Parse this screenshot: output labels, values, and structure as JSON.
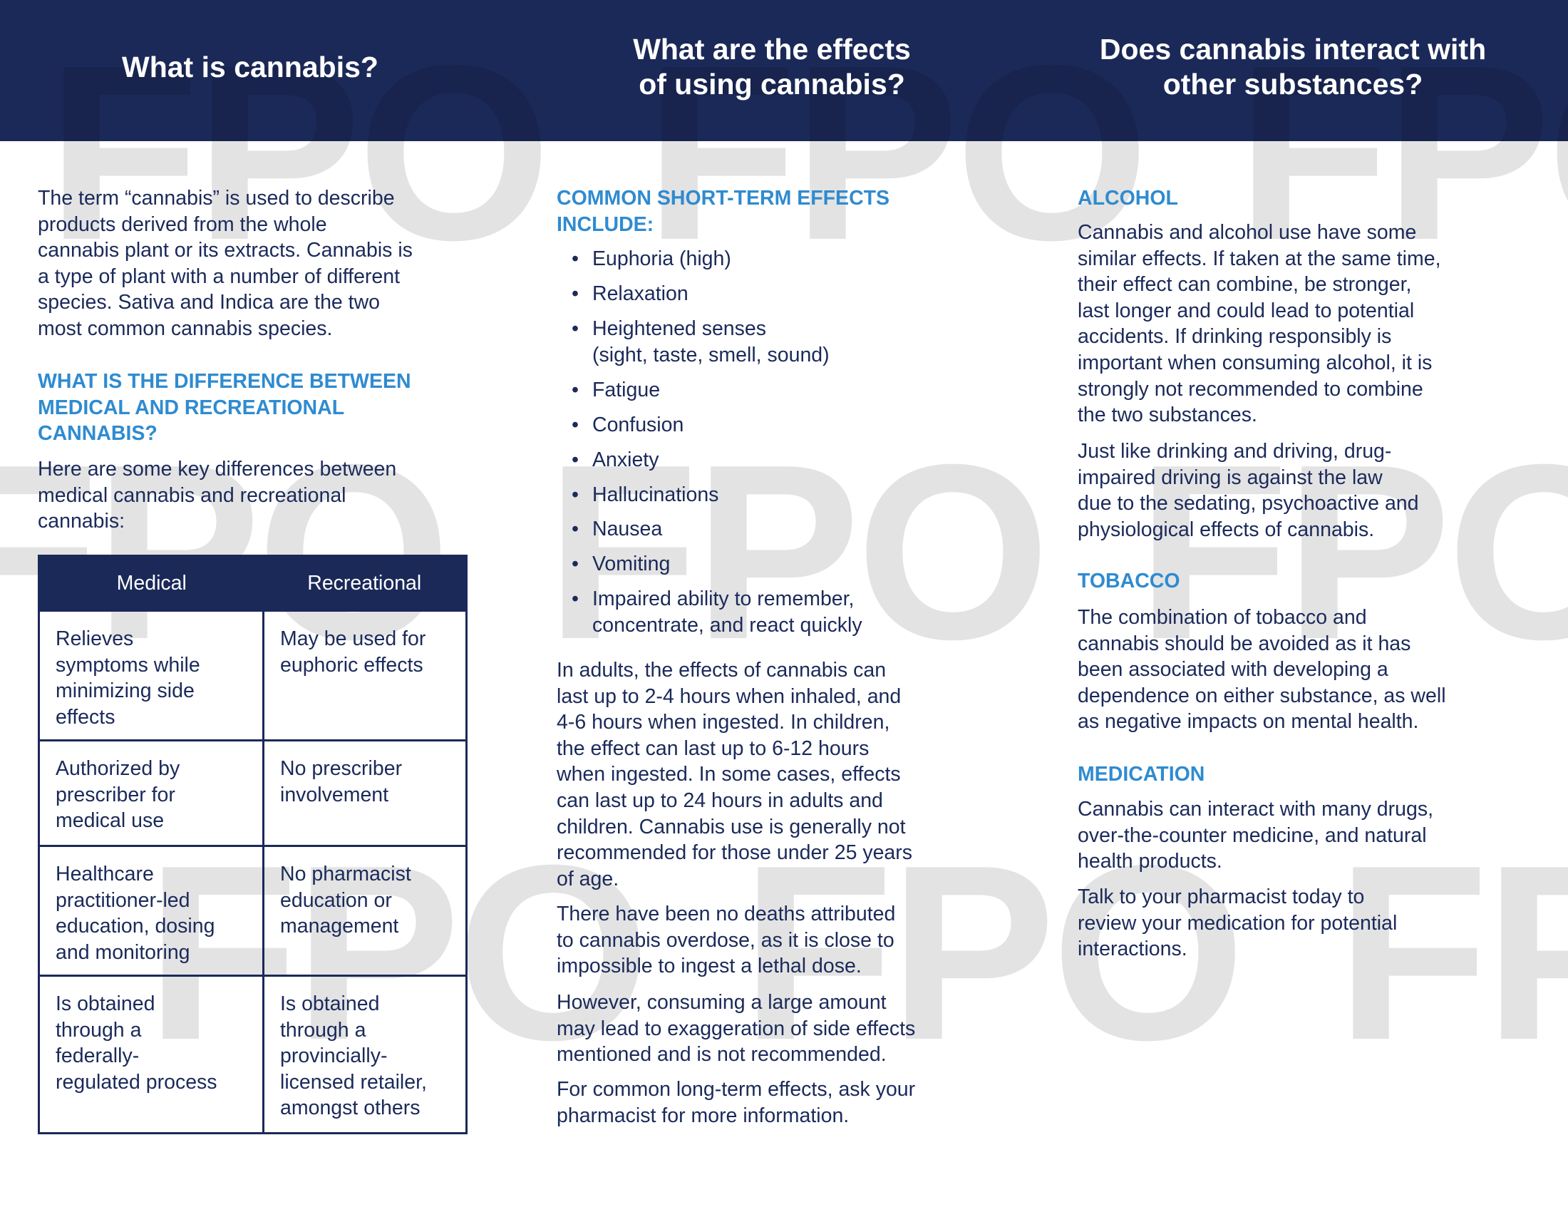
{
  "watermark": "FPO",
  "colors": {
    "navy": "#1b2958",
    "heading_blue": "#2f8bd0",
    "body_text": "#1b2a5a"
  },
  "col1": {
    "title": "What is cannabis?",
    "intro": "The term “cannabis” is used to describe\nproducts derived from the whole\ncannabis plant or its extracts. Cannabis is\na type of plant with a number of different\nspecies. Sativa and Indica are the two\nmost common cannabis species.",
    "subheading": "WHAT IS THE DIFFERENCE BETWEEN\nMEDICAL AND RECREATIONAL\nCANNABIS?",
    "lead": "Here are some key differences between\nmedical cannabis and recreational\ncannabis:",
    "table": {
      "headers": [
        "Medical",
        "Recreational"
      ],
      "rows": [
        [
          "Relieves\nsymptoms while\nminimizing side\neffects",
          "May be used for\neuphoric effects"
        ],
        [
          "Authorized by\nprescriber for\nmedical use",
          "No prescriber\ninvolvement"
        ],
        [
          "Healthcare\npractitioner-led\neducation, dosing\nand monitoring",
          "No pharmacist\neducation or\nmanagement"
        ],
        [
          "Is obtained\nthrough a\nfederally-\nregulated process",
          "Is obtained\nthrough a\nprovincially-\nlicensed retailer,\namongst others"
        ]
      ]
    }
  },
  "col2": {
    "title": "What are the effects\nof using cannabis?",
    "subheading": "COMMON SHORT-TERM EFFECTS\nINCLUDE:",
    "bullet": "•",
    "effects": [
      "Euphoria (high)",
      "Relaxation",
      "Heightened senses\n(sight, taste, smell, sound)",
      "Fatigue",
      "Confusion",
      "Anxiety",
      "Hallucinations",
      "Nausea",
      "Vomiting",
      "Impaired ability to remember,\nconcentrate, and react quickly"
    ],
    "paragraphs": [
      "In adults, the effects of cannabis can\nlast up to 2-4 hours when inhaled, and\n4-6 hours when ingested. In children,\nthe effect can last up to 6-12 hours\nwhen ingested. In some cases, effects\ncan last up to 24 hours in adults and\nchildren. Cannabis use is generally not\nrecommended for those under 25 years\nof age.",
      "There have been no deaths attributed\nto cannabis overdose, as it is close to\nimpossible to ingest a lethal dose.",
      "However, consuming a large amount\nmay lead to exaggeration of side effects\nmentioned and is not recommended.",
      "For common long-term effects, ask your\npharmacist for more information."
    ]
  },
  "col3": {
    "title": "Does cannabis interact with\nother substances?",
    "alcohol": {
      "heading": "ALCOHOL",
      "p1": "Cannabis and alcohol use have some\nsimilar effects. If taken at the same time,\ntheir effect can combine, be stronger,\nlast longer and could lead to potential\naccidents. If drinking responsibly is\nimportant when consuming alcohol, it is\nstrongly not recommended to combine\nthe two substances.",
      "p2": "Just like drinking and driving, drug-\nimpaired driving is against the law\ndue to the sedating, psychoactive and\nphysiological effects of cannabis."
    },
    "tobacco": {
      "heading": "TOBACCO",
      "p1": "The combination of tobacco and\ncannabis should be avoided as it has\nbeen associated with developing a\ndependence on either substance, as well\nas negative impacts on mental health."
    },
    "medication": {
      "heading": "MEDICATION",
      "p1": "Cannabis can interact with many drugs,\nover-the-counter medicine, and natural\nhealth products.",
      "p2": "Talk to your pharmacist today to\nreview your medication for potential\ninteractions."
    }
  }
}
